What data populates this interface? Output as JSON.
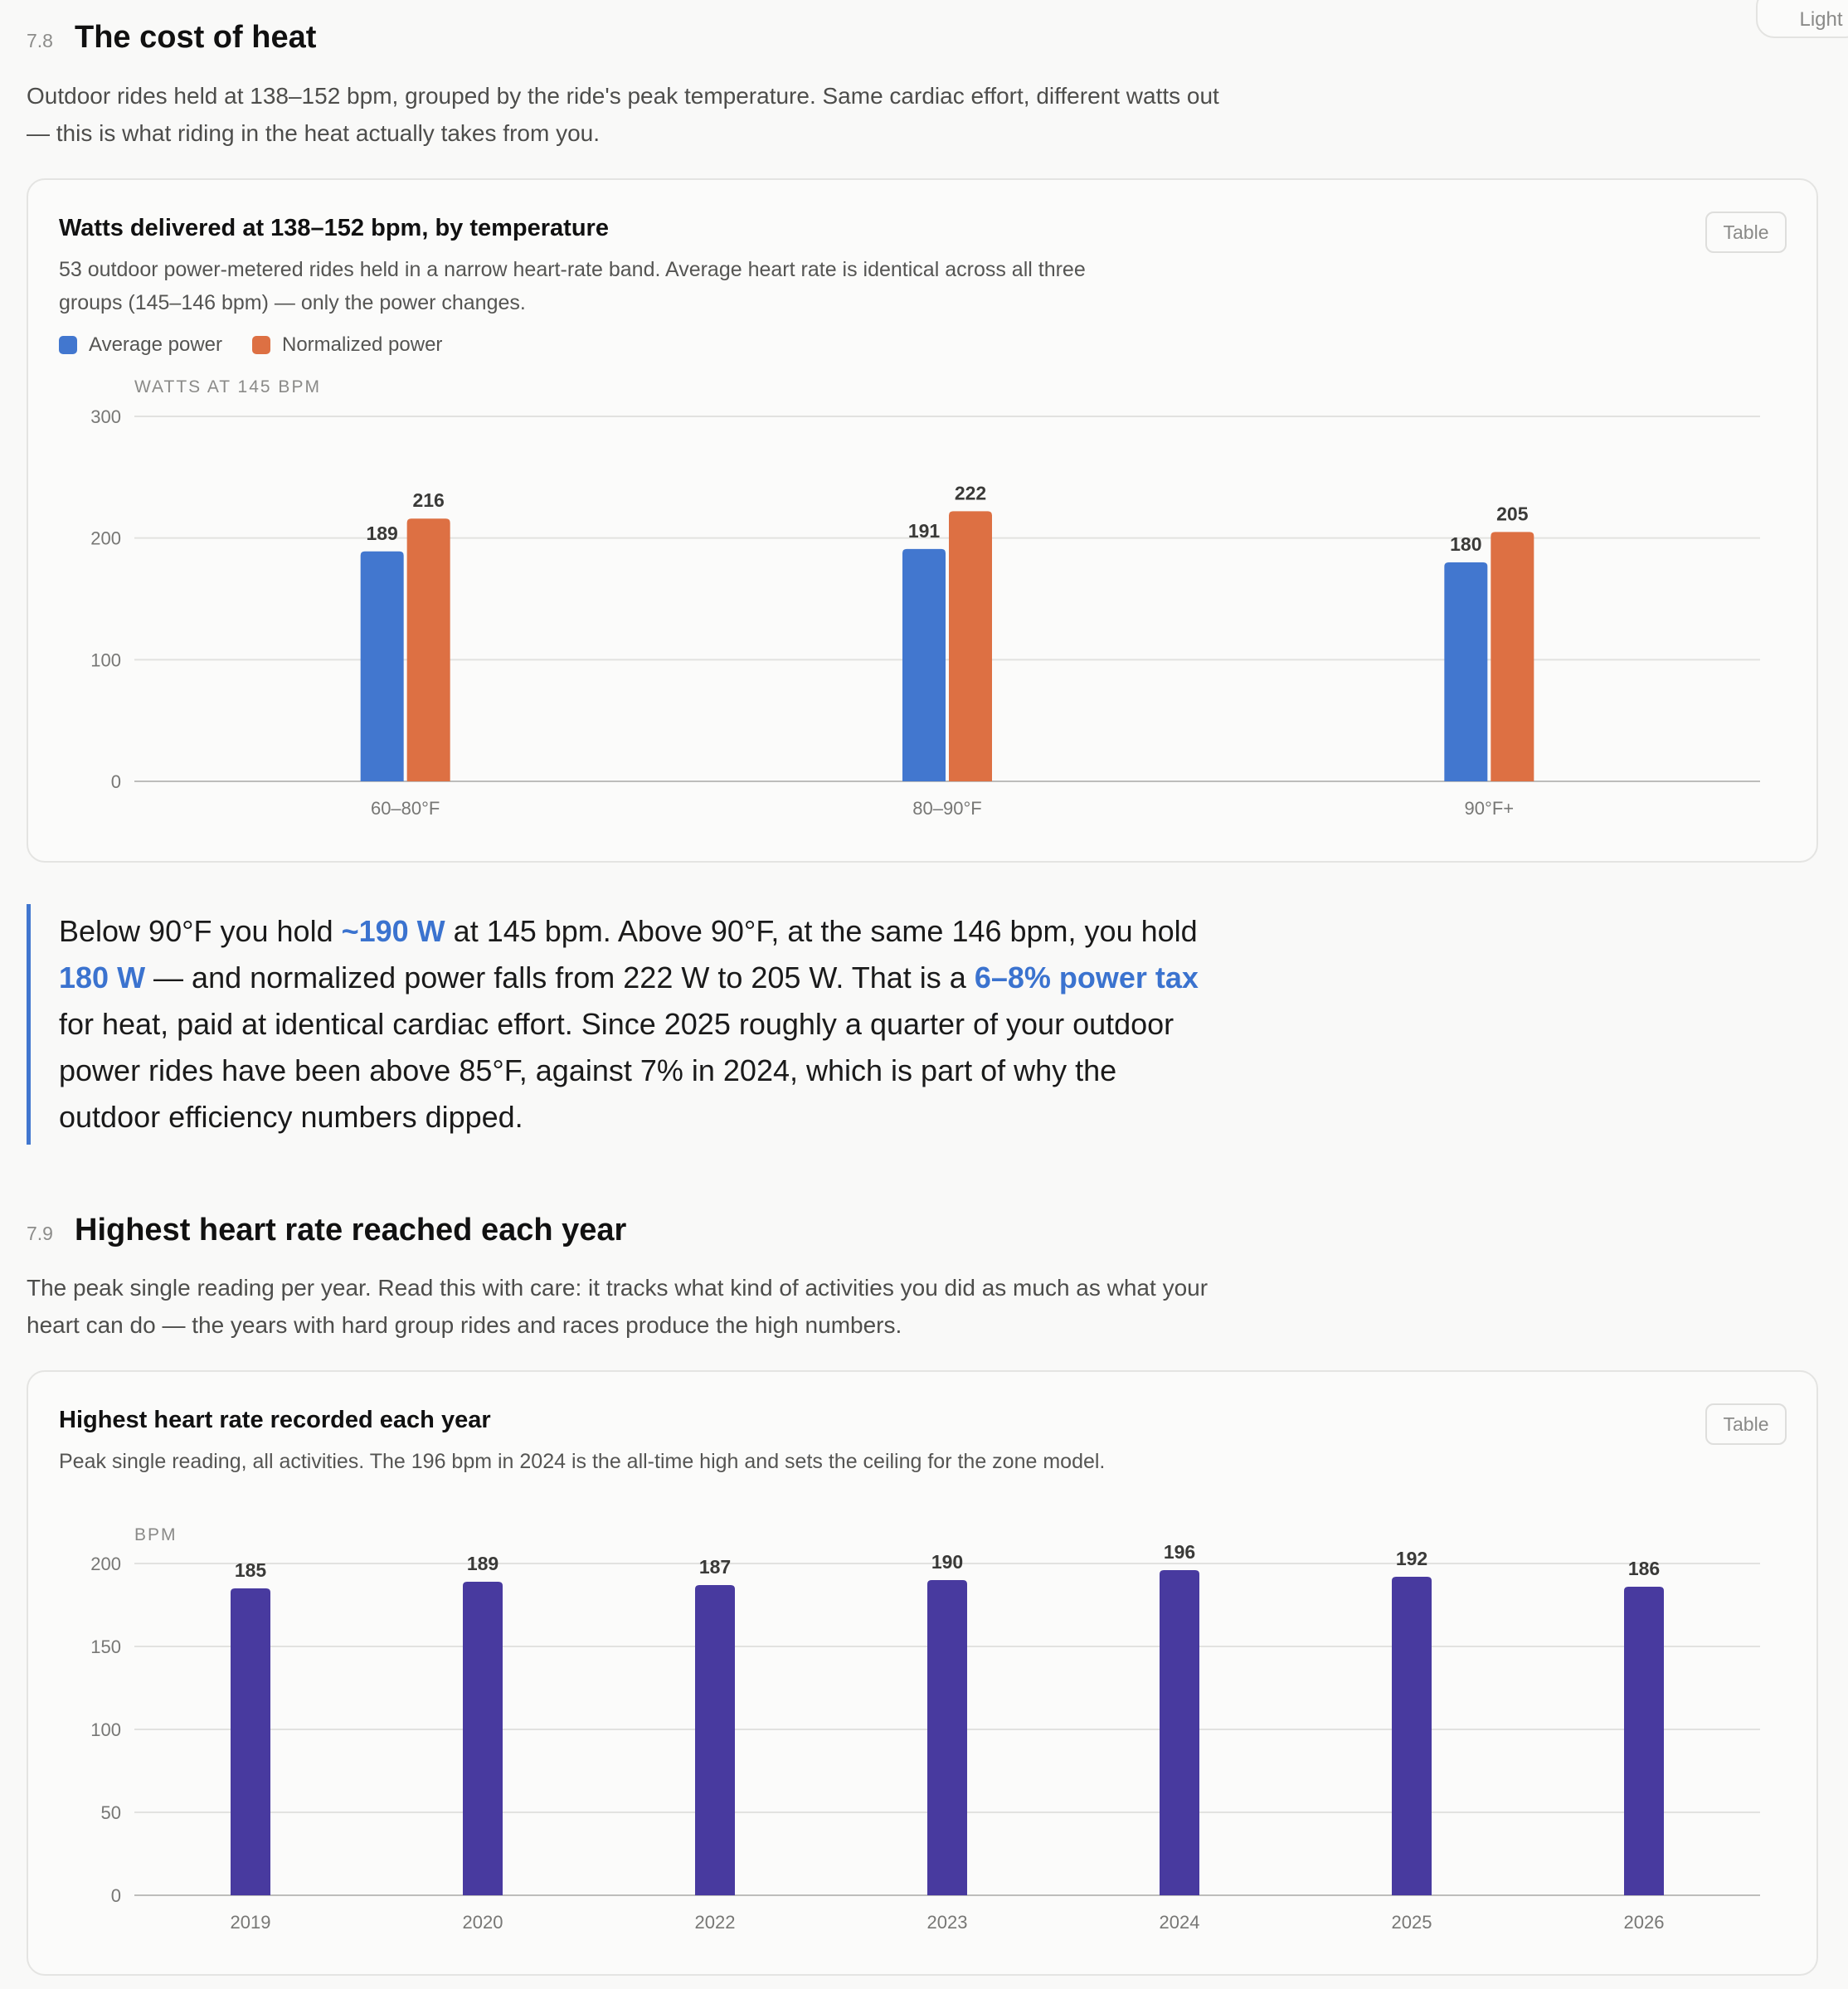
{
  "theme_toggle": {
    "label": "Light"
  },
  "sections": [
    {
      "number": "7.8",
      "title": "The cost of heat",
      "description": "Outdoor rides held at 138–152 bpm, grouped by the ride's peak temperature. Same cardiac effort, different watts out — this is what riding in the heat actually takes from you.",
      "card": {
        "title": "Watts delivered at 138–152 bpm, by temperature",
        "subtitle": "53 outdoor power-metered rides held in a narrow heart-rate band. Average heart rate is identical across all three groups (145–146 bpm) — only the power changes.",
        "table_button": "Table"
      }
    },
    {
      "number": "7.9",
      "title": "Highest heart rate reached each year",
      "description": "The peak single reading per year. Read this with care: it tracks what kind of activities you did as much as what your heart can do — the years with hard group rides and races produce the high numbers.",
      "card": {
        "title": "Highest heart rate recorded each year",
        "subtitle": "Peak single reading, all activities. The 196 bpm in 2024 is the all-time high and sets the ceiling for the zone model.",
        "table_button": "Table"
      }
    }
  ],
  "callout": {
    "p1": "Below 90°F you hold ",
    "h1": "~190 W",
    "p2": " at 145 bpm. Above 90°F, at the same 146 bpm, you hold ",
    "h2": "180 W",
    "p3": " — and normalized power falls from 222 W to 205 W. That is a ",
    "h3": "6–8% power tax",
    "p4": " for heat, paid at identical cardiac effort. Since 2025 roughly a quarter of your outdoor power rides have been above 85°F, against 7% in 2024, which is part of why the outdoor efficiency numbers dipped."
  },
  "chart_data": [
    {
      "type": "bar",
      "ylabel": "WATTS AT 145 BPM",
      "ylim": [
        0,
        300
      ],
      "yticks": [
        0,
        100,
        200,
        300
      ],
      "categories": [
        "60–80°F",
        "80–90°F",
        "90°F+"
      ],
      "series": [
        {
          "name": "Average power",
          "color": "#4277cf",
          "values": [
            189,
            191,
            180
          ]
        },
        {
          "name": "Normalized power",
          "color": "#dd7043",
          "values": [
            216,
            222,
            205
          ]
        }
      ],
      "legend": "top-left",
      "grid": true
    },
    {
      "type": "bar",
      "ylabel": "BPM",
      "ylim": [
        0,
        200
      ],
      "yticks": [
        0,
        50,
        100,
        150,
        200
      ],
      "categories": [
        "2019",
        "2020",
        "2022",
        "2023",
        "2024",
        "2025",
        "2026"
      ],
      "series": [
        {
          "color": "#483a9f",
          "values": [
            185,
            189,
            187,
            190,
            196,
            192,
            186
          ]
        }
      ],
      "grid": true
    }
  ]
}
